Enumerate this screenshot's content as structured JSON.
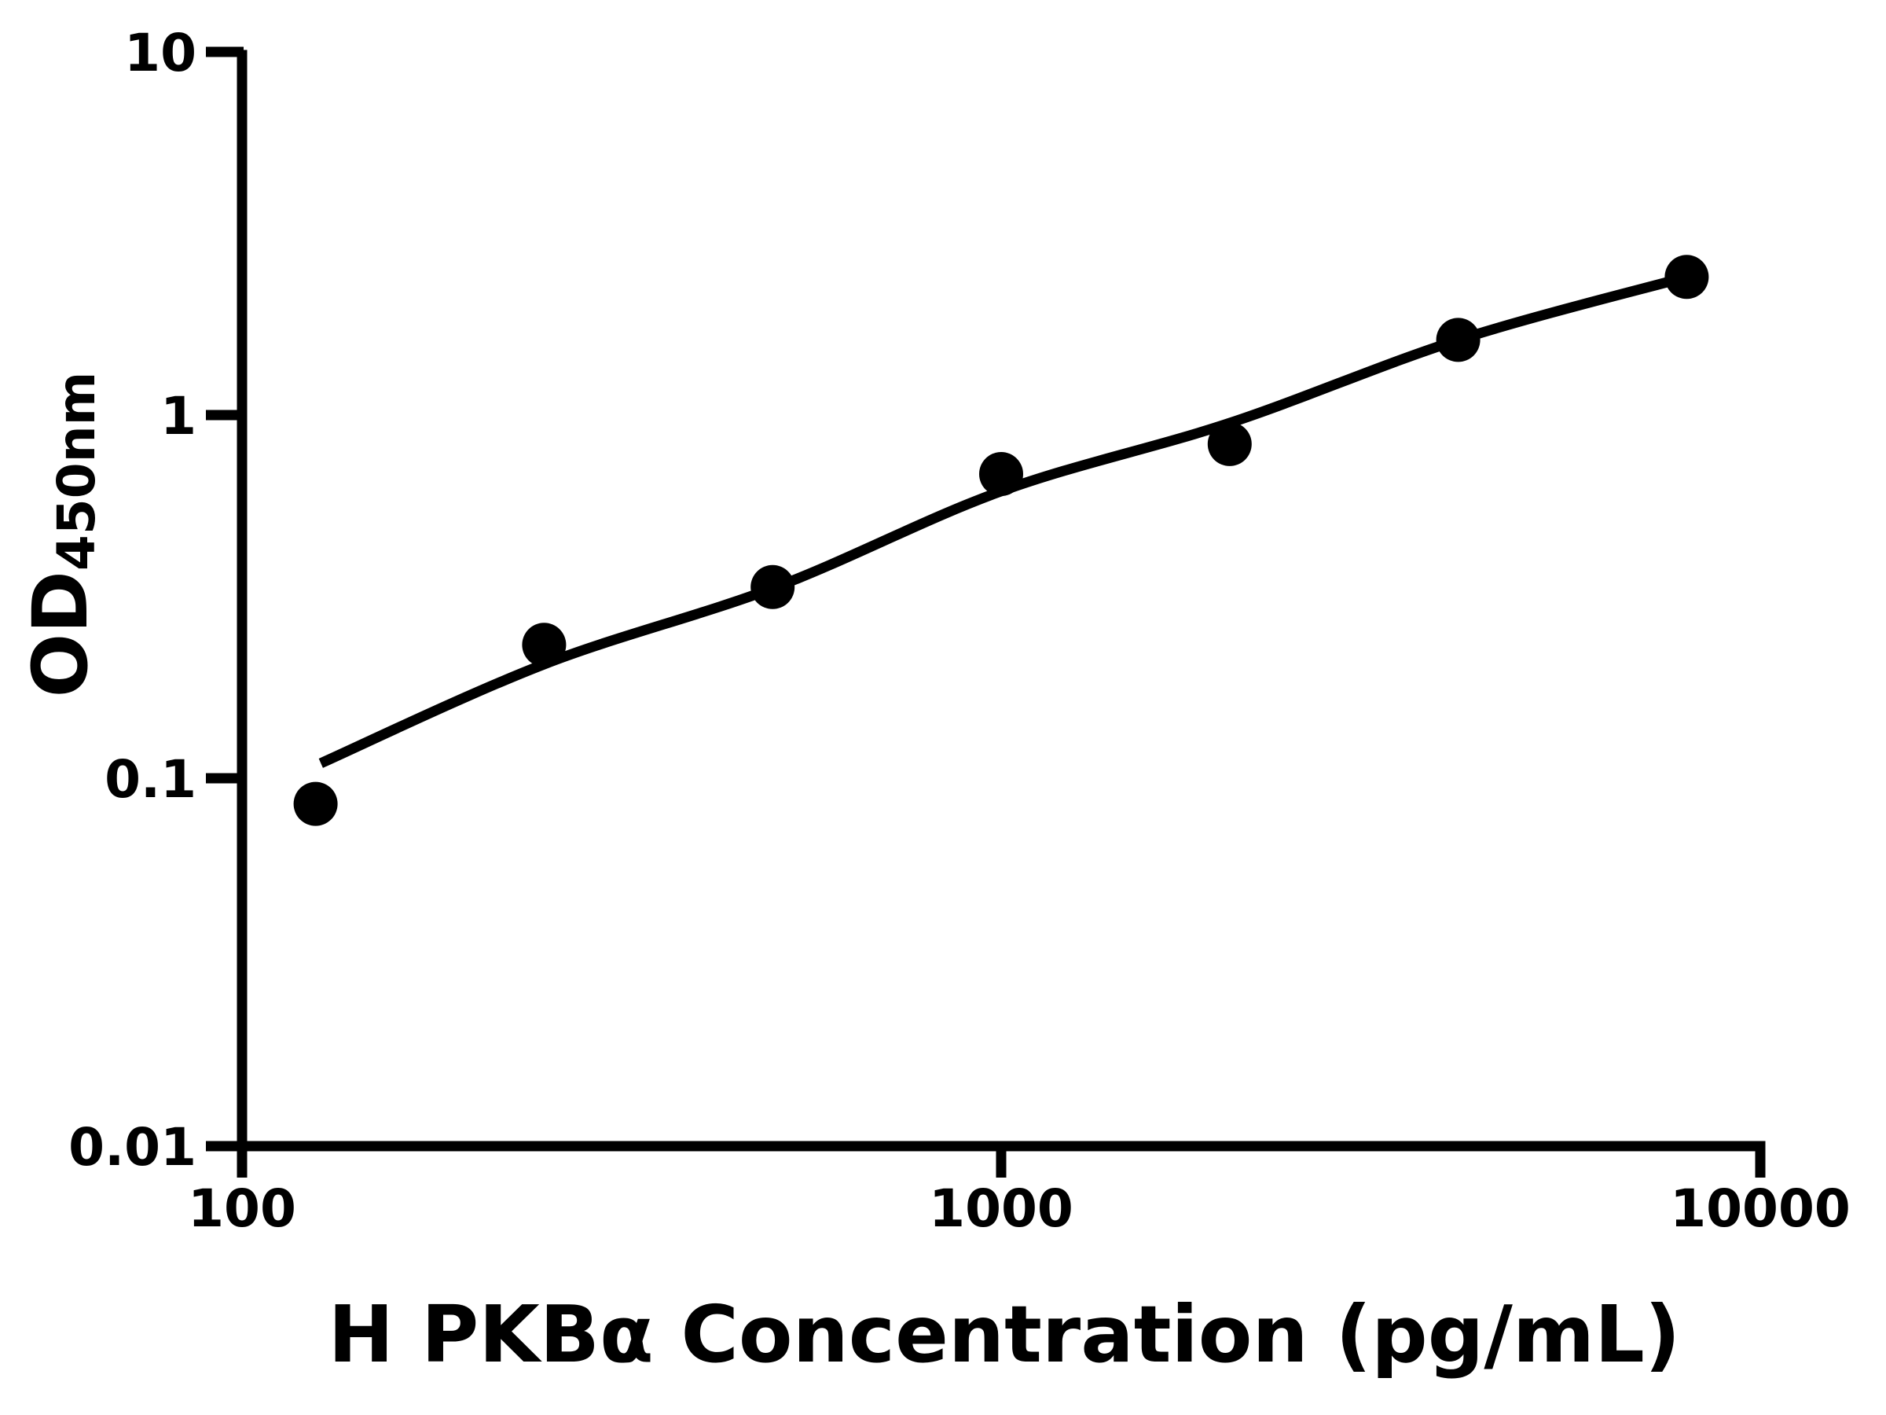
{
  "chart_data": {
    "type": "scatter",
    "title": "",
    "xlabel": "H PKBα Concentration (pg/mL)",
    "ylabel_main": "OD",
    "ylabel_sub": "450nm",
    "x_scale": "log",
    "y_scale": "log",
    "x_ticks": [
      100,
      1000,
      10000
    ],
    "x_tick_labels": [
      "100",
      "1000",
      "10000"
    ],
    "y_ticks": [
      10,
      1,
      0.1,
      0.01
    ],
    "y_tick_labels": [
      "10",
      "1",
      "0.1",
      "0.01"
    ],
    "xlim": [
      100,
      10000
    ],
    "ylim": [
      0.01,
      10
    ],
    "grid": false,
    "legend": false,
    "background_color": "#ffffff",
    "axis_color": "#000000",
    "line_color": "#000000",
    "marker": {
      "shape": "circle",
      "radius_px": 28,
      "color": "#000000"
    },
    "series": [
      {
        "name": "standard-points",
        "kind": "scatter",
        "points": [
          {
            "x": 125,
            "y": 0.085
          },
          {
            "x": 250,
            "y": 0.233
          },
          {
            "x": 500,
            "y": 0.336
          },
          {
            "x": 1000,
            "y": 0.688
          },
          {
            "x": 2000,
            "y": 0.832
          },
          {
            "x": 4000,
            "y": 1.61
          },
          {
            "x": 8000,
            "y": 2.4
          }
        ]
      },
      {
        "name": "fit-curve",
        "kind": "line",
        "points": [
          {
            "x": 127,
            "y": 0.11
          },
          {
            "x": 250,
            "y": 0.206
          },
          {
            "x": 505,
            "y": 0.336
          },
          {
            "x": 1000,
            "y": 0.617
          },
          {
            "x": 2000,
            "y": 0.951
          },
          {
            "x": 4000,
            "y": 1.61
          },
          {
            "x": 8000,
            "y": 2.4
          }
        ]
      }
    ]
  }
}
